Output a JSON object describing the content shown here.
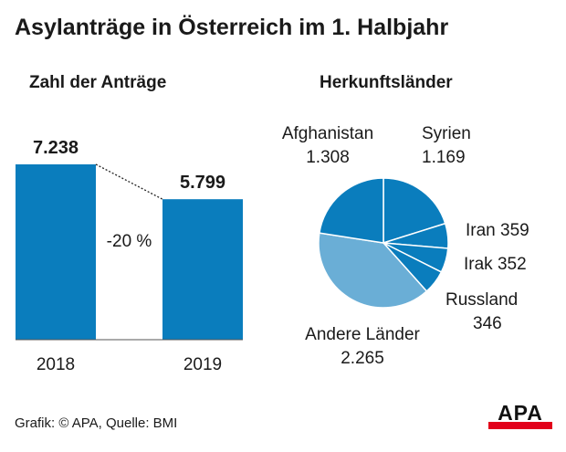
{
  "title": "Asylanträge in Österreich im 1. Halbjahr",
  "source": "Grafik: © APA, Quelle: BMI",
  "logo": {
    "text": "APA",
    "accent_color": "#e2001a"
  },
  "colors": {
    "bar": "#0a7dbd",
    "pie_main": "#0a7dbd",
    "pie_other": "#6aaed6",
    "stroke": "#ffffff"
  },
  "chart_data": [
    {
      "type": "bar",
      "title": "Zahl der Anträge",
      "categories": [
        "2018",
        "2019"
      ],
      "values": [
        7238,
        5799
      ],
      "value_labels": [
        "7.238",
        "5.799"
      ],
      "change_label": "-20 %",
      "ylim": [
        0,
        7238
      ],
      "grid": false
    },
    {
      "type": "pie",
      "title": "Herkunftsländer",
      "slices": [
        {
          "name": "Syrien",
          "value": 1169,
          "value_label": "1.169"
        },
        {
          "name": "Iran",
          "value": 359,
          "value_label": "359"
        },
        {
          "name": "Irak",
          "value": 352,
          "value_label": "352"
        },
        {
          "name": "Russland",
          "value": 346,
          "value_label": "346"
        },
        {
          "name": "Andere Länder",
          "value": 2265,
          "value_label": "2.265"
        },
        {
          "name": "Afghanistan",
          "value": 1308,
          "value_label": "1.308"
        }
      ]
    }
  ]
}
